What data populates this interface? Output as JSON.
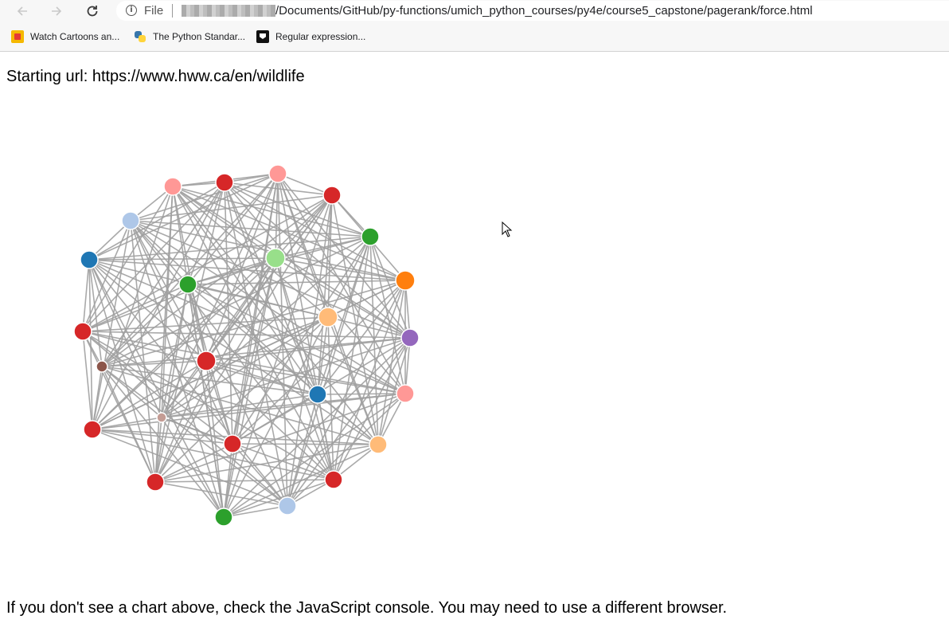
{
  "browser": {
    "back_icon": "arrow-left-icon",
    "forward_icon": "arrow-right-icon",
    "reload_icon": "reload-icon",
    "info_icon": "info-icon",
    "scheme_label": "File",
    "url_path": "/Documents/GitHub/py-functions/umich_python_courses/py4e/course5_capstone/pagerank/force.html",
    "bookmarks": [
      {
        "label": "Watch Cartoons an...",
        "icon": "cartoon-favicon"
      },
      {
        "label": "The Python Standar...",
        "icon": "python-favicon"
      },
      {
        "label": "Regular expression...",
        "icon": "regex-favicon"
      }
    ]
  },
  "page": {
    "starting_url_text": "Starting url: https://www.hww.ca/en/wildlife",
    "footer_text": "If you don't see a chart above, check the JavaScript console. You may need to use a different browser."
  },
  "graph": {
    "edge_color": "#a0a0a0",
    "node_stroke": "#ffffff",
    "nodes": [
      {
        "color": "#ff9896"
      },
      {
        "color": "#d62728"
      },
      {
        "color": "#ff9896"
      },
      {
        "color": "#d62728"
      },
      {
        "color": "#aec7e8"
      },
      {
        "color": "#2ca02c"
      },
      {
        "color": "#1f77b4"
      },
      {
        "color": "#98df8a"
      },
      {
        "color": "#ff7f0e"
      },
      {
        "color": "#2ca02c"
      },
      {
        "color": "#ffbb78"
      },
      {
        "color": "#d62728"
      },
      {
        "color": "#9467bd"
      },
      {
        "color": "#8c564b"
      },
      {
        "color": "#d62728"
      },
      {
        "color": "#1f77b4"
      },
      {
        "color": "#ff9896"
      },
      {
        "color": "#c49c94"
      },
      {
        "color": "#d62728"
      },
      {
        "color": "#d62728"
      },
      {
        "color": "#ffbb78"
      },
      {
        "color": "#d62728"
      },
      {
        "color": "#d62728"
      },
      {
        "color": "#aec7e8"
      },
      {
        "color": "#2ca02c"
      }
    ]
  }
}
